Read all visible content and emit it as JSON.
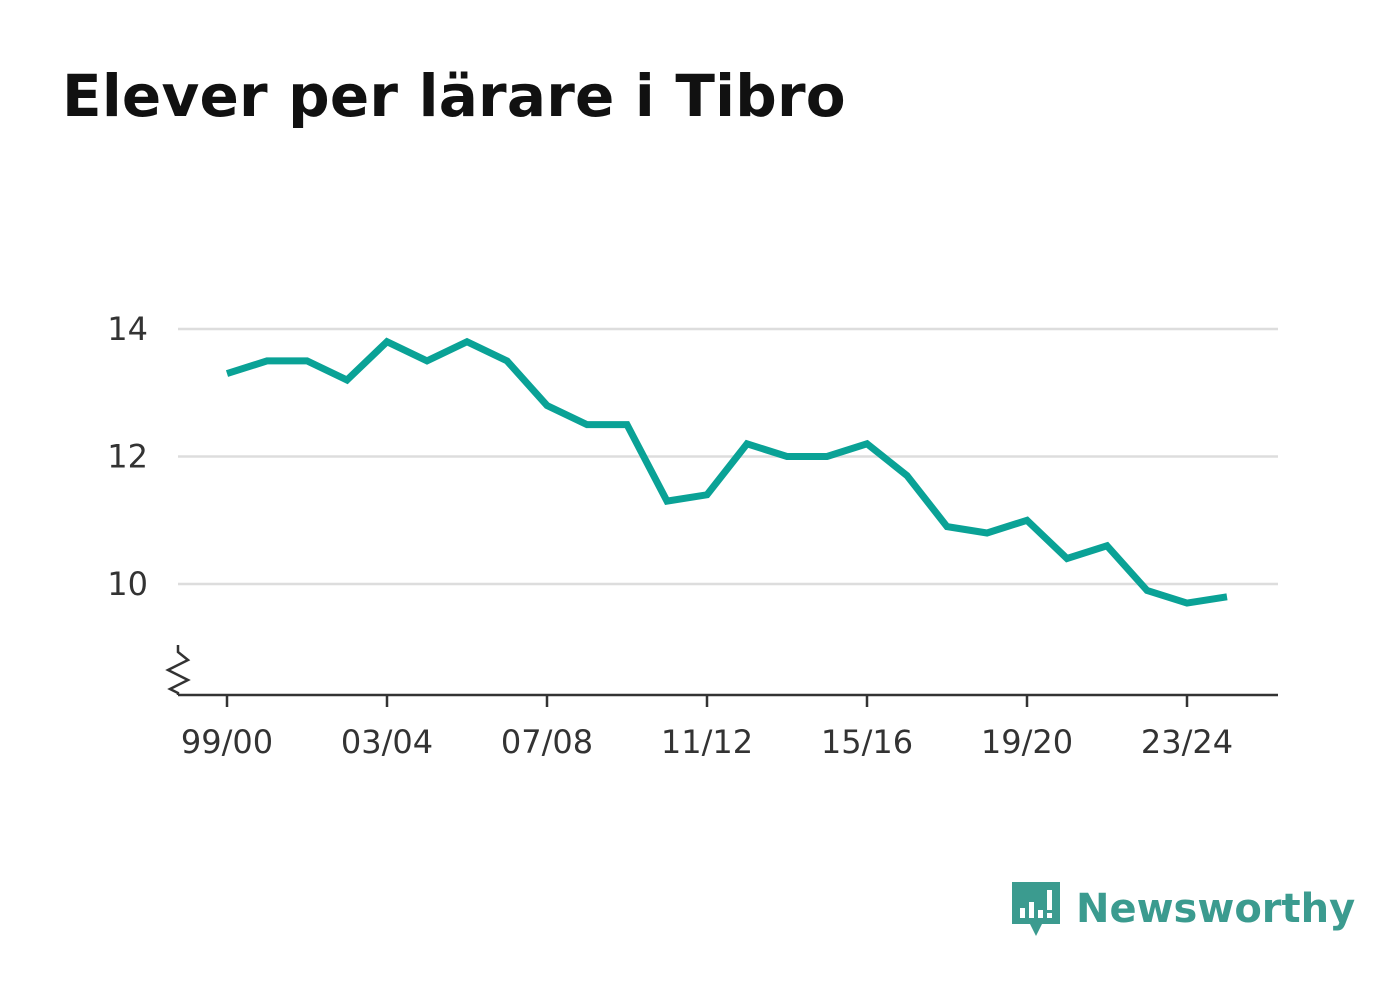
{
  "title": "Elever per lärare i Tibro",
  "brand": {
    "name": "Newsworthy",
    "color": "#3b9b8f",
    "icon": "newsworthy-logo-icon"
  },
  "colors": {
    "line": "#0aa296",
    "grid": "#dddddd",
    "axis": "#333333",
    "text": "#333333"
  },
  "chart_data": {
    "type": "line",
    "title": "Elever per lärare i Tibro",
    "xlabel": "",
    "ylabel": "",
    "categories": [
      "99/00",
      "00/01",
      "01/02",
      "02/03",
      "03/04",
      "04/05",
      "05/06",
      "06/07",
      "07/08",
      "08/09",
      "09/10",
      "10/11",
      "11/12",
      "12/13",
      "13/14",
      "14/15",
      "15/16",
      "16/17",
      "17/18",
      "18/19",
      "19/20",
      "20/21",
      "21/22",
      "22/23",
      "23/24",
      "24/25"
    ],
    "x_tick_labels": [
      "99/00",
      "03/04",
      "07/08",
      "11/12",
      "15/16",
      "19/20",
      "23/24"
    ],
    "y_ticks": [
      "10",
      "12",
      "14"
    ],
    "ylim": [
      8.25,
      14.3
    ],
    "grid": true,
    "axis_break": true,
    "series": [
      {
        "values": [
          13.3,
          13.5,
          13.5,
          13.2,
          13.8,
          13.5,
          13.8,
          13.5,
          12.8,
          12.5,
          12.5,
          11.3,
          11.4,
          12.2,
          12.0,
          12.0,
          12.2,
          11.7,
          10.9,
          10.8,
          11.0,
          10.4,
          10.6,
          9.9,
          9.7,
          9.8
        ]
      }
    ]
  }
}
